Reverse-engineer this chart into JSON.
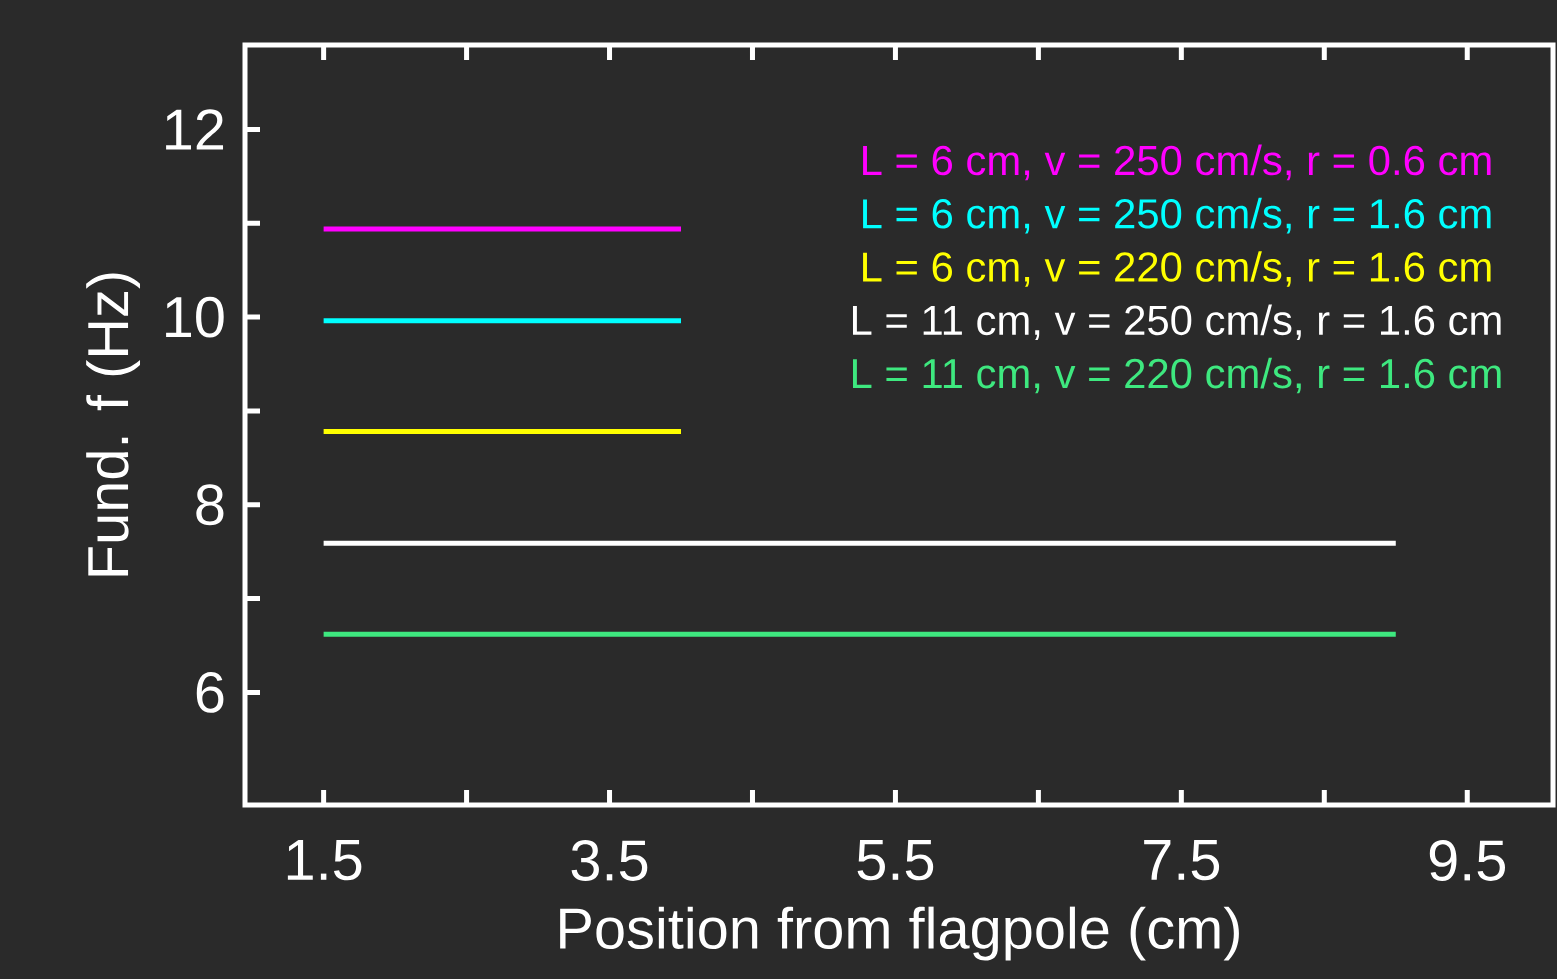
{
  "chart_data": {
    "type": "line",
    "xlabel": "Position from flagpole (cm)",
    "ylabel": "Fund. f (Hz)",
    "xlim": [
      0.95,
      10.1
    ],
    "ylim": [
      4.8,
      12.9
    ],
    "xticks": [
      1.5,
      {
        "value": 2.5,
        "label": null
      },
      3.5,
      {
        "value": 4.5,
        "label": null
      },
      5.5,
      {
        "value": 6.5,
        "label": null
      },
      7.5,
      {
        "value": 8.5,
        "label": null
      },
      9.5
    ],
    "yticks": [
      6,
      {
        "value": 7,
        "label": null
      },
      8,
      {
        "value": 9,
        "label": null
      },
      10,
      {
        "value": 11,
        "label": null
      },
      12
    ],
    "legend": "top right",
    "grid": false,
    "marker": "none",
    "line_style": "solid",
    "series": [
      {
        "name": "L = 6 cm, v = 250 cm/s, r = 0.6 cm",
        "color": "#ff00ff",
        "x": [
          1.5,
          4.0
        ],
        "values": [
          10.94,
          10.94
        ]
      },
      {
        "name": "L = 6 cm, v = 250 cm/s, r = 1.6 cm",
        "color": "#00ffff",
        "x": [
          1.5,
          4.0
        ],
        "values": [
          9.96,
          9.96
        ]
      },
      {
        "name": "L = 6 cm, v = 220 cm/s, r = 1.6 cm",
        "color": "#ffff00",
        "x": [
          1.5,
          4.0
        ],
        "values": [
          8.78,
          8.78
        ]
      },
      {
        "name": "L = 11 cm, v = 250 cm/s, r = 1.6 cm",
        "color": "#ffffff",
        "x": [
          1.5,
          9.0
        ],
        "values": [
          7.59,
          7.59
        ]
      },
      {
        "name": "L = 11 cm, v = 220 cm/s, r = 1.6 cm",
        "color": "#3ee87f",
        "x": [
          1.5,
          9.0
        ],
        "values": [
          6.62,
          6.62
        ]
      }
    ]
  }
}
